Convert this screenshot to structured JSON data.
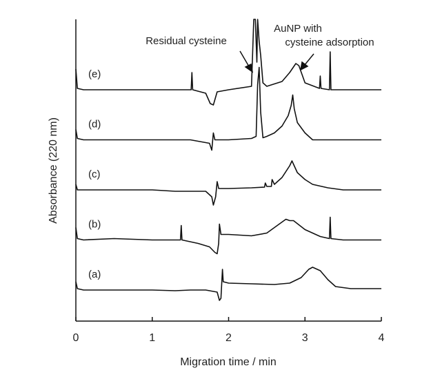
{
  "chart_data": {
    "type": "line",
    "x_label": "Migration time / min",
    "y_label": "Absorbance (220 nm)",
    "annotations": [
      "Residual cysteine",
      "AuNP with",
      "cysteine adsorption"
    ],
    "xlim": [
      0,
      4
    ],
    "xticks": [
      0,
      1,
      2,
      3,
      4
    ],
    "series": [
      {
        "name": "(a)",
        "color": "#111111",
        "x": [
          0,
          0.02,
          0.1,
          0.5,
          1.0,
          1.3,
          1.5,
          1.7,
          1.85,
          1.88,
          1.9,
          1.92,
          1.93,
          2.0,
          2.3,
          2.6,
          2.8,
          2.95,
          3.05,
          3.1,
          3.2,
          3.3,
          3.4,
          3.6,
          4.0
        ],
        "values": [
          12,
          2,
          0,
          0,
          0,
          -1,
          0,
          0,
          -3,
          -15,
          -12,
          30,
          12,
          10,
          9,
          8,
          10,
          18,
          30,
          33,
          28,
          15,
          5,
          2,
          2
        ]
      },
      {
        "name": "(b)",
        "color": "#111111",
        "x": [
          0,
          0.02,
          0.1,
          0.5,
          1.0,
          1.37,
          1.38,
          1.39,
          1.6,
          1.75,
          1.82,
          1.85,
          1.87,
          1.88,
          1.9,
          2.0,
          2.3,
          2.5,
          2.65,
          2.75,
          2.8,
          2.85,
          3.0,
          3.2,
          3.32,
          3.33,
          3.34,
          3.5,
          4.0
        ],
        "values": [
          18,
          2,
          0,
          2,
          0,
          0,
          21,
          0,
          -5,
          -10,
          -18,
          -20,
          -5,
          23,
          8,
          8,
          6,
          10,
          22,
          30,
          28,
          28,
          15,
          5,
          2,
          33,
          2,
          0,
          0
        ]
      },
      {
        "name": "(c)",
        "color": "#111111",
        "x": [
          0,
          0.02,
          0.1,
          1.0,
          1.3,
          1.7,
          1.78,
          1.8,
          1.83,
          1.85,
          1.87,
          2.0,
          2.3,
          2.47,
          2.48,
          2.5,
          2.56,
          2.57,
          2.6,
          2.7,
          2.8,
          2.83,
          2.9,
          3.0,
          3.1,
          3.3,
          3.5,
          4.0
        ],
        "values": [
          8,
          0,
          0,
          0,
          -2,
          -2,
          -10,
          -22,
          -10,
          12,
          2,
          2,
          3,
          4,
          10,
          5,
          5,
          15,
          8,
          18,
          35,
          42,
          25,
          15,
          8,
          3,
          0,
          0
        ]
      },
      {
        "name": "(d)",
        "color": "#111111",
        "x": [
          0,
          0.02,
          0.1,
          1.0,
          1.5,
          1.75,
          1.78,
          1.8,
          1.82,
          2.0,
          2.3,
          2.36,
          2.38,
          2.4,
          2.42,
          2.45,
          2.5,
          2.6,
          2.7,
          2.78,
          2.82,
          2.84,
          2.86,
          2.9,
          3.0,
          3.1,
          3.5,
          4.0
        ],
        "values": [
          15,
          2,
          0,
          0,
          0,
          -5,
          -15,
          10,
          0,
          0,
          2,
          5,
          80,
          105,
          40,
          3,
          5,
          10,
          20,
          35,
          50,
          65,
          45,
          25,
          10,
          0,
          0,
          0
        ]
      },
      {
        "name": "(e)",
        "color": "#111111",
        "x": [
          0,
          0.02,
          0.1,
          1.0,
          1.4,
          1.51,
          1.52,
          1.53,
          1.7,
          1.76,
          1.8,
          1.85,
          2.0,
          2.3,
          2.33,
          2.35,
          2.37,
          2.38,
          2.4,
          2.42,
          2.45,
          2.5,
          2.7,
          2.8,
          2.88,
          2.92,
          3.0,
          3.19,
          3.2,
          3.21,
          3.32,
          3.33,
          3.34,
          3.5,
          4.0
        ],
        "values": [
          30,
          2,
          0,
          0,
          0,
          0,
          25,
          0,
          -5,
          -20,
          -22,
          -3,
          0,
          5,
          102,
          102,
          40,
          102,
          70,
          50,
          10,
          5,
          12,
          25,
          38,
          35,
          10,
          2,
          20,
          2,
          0,
          55,
          0,
          0,
          0
        ]
      }
    ]
  }
}
